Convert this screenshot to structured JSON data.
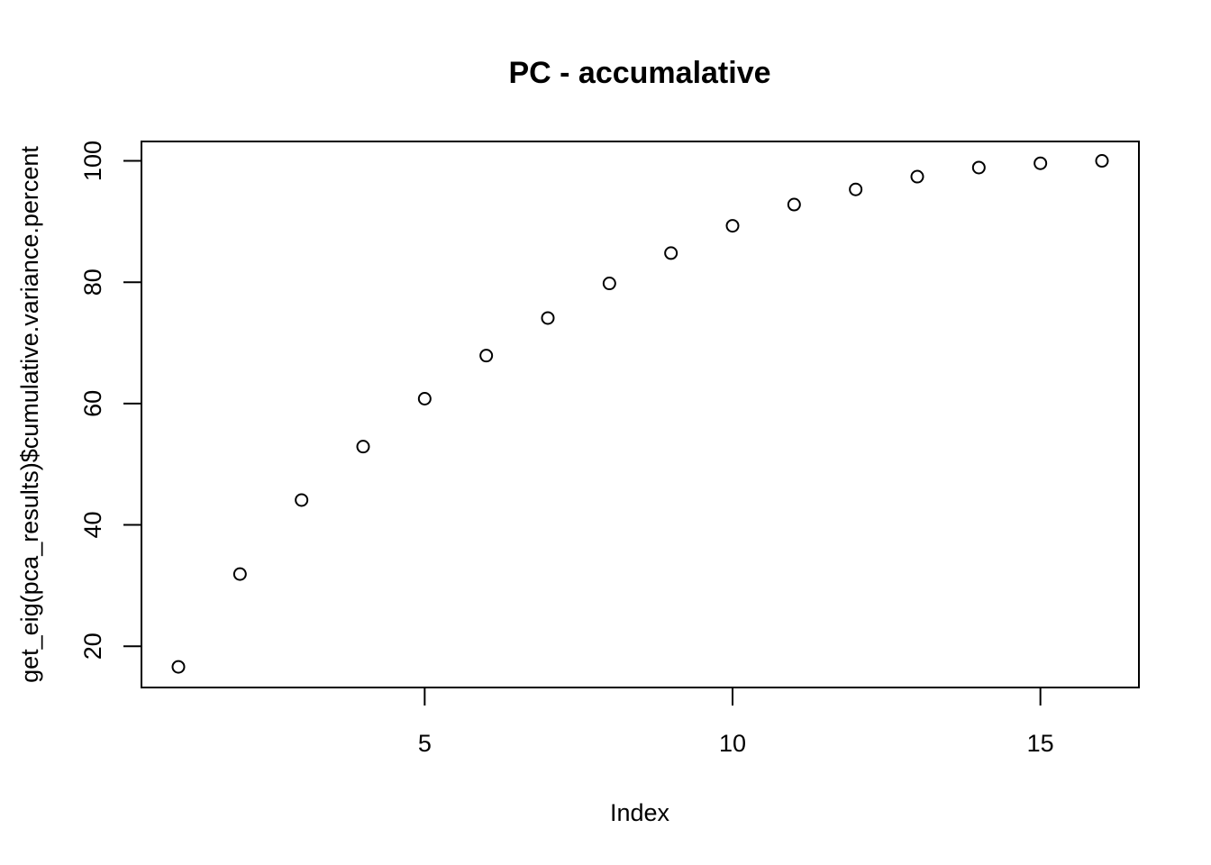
{
  "chart_data": {
    "type": "scatter",
    "title": "PC - accumalative",
    "xlabel": "Index",
    "ylabel": "get_eig(pca_results)$cumulative.variance.percent",
    "xlim": [
      0.4,
      16.6
    ],
    "ylim": [
      13.2,
      103.2
    ],
    "grid": false,
    "legend": "none",
    "marker": "open-circle",
    "x_ticks": [
      5,
      10,
      15
    ],
    "y_ticks": [
      20,
      40,
      60,
      80,
      100
    ],
    "x": [
      1,
      2,
      3,
      4,
      5,
      6,
      7,
      8,
      9,
      10,
      11,
      12,
      13,
      14,
      15,
      16
    ],
    "y": [
      16.6,
      31.9,
      44.1,
      52.9,
      60.8,
      67.9,
      74.1,
      79.8,
      84.8,
      89.3,
      92.8,
      95.3,
      97.4,
      98.9,
      99.6,
      100.0
    ]
  }
}
